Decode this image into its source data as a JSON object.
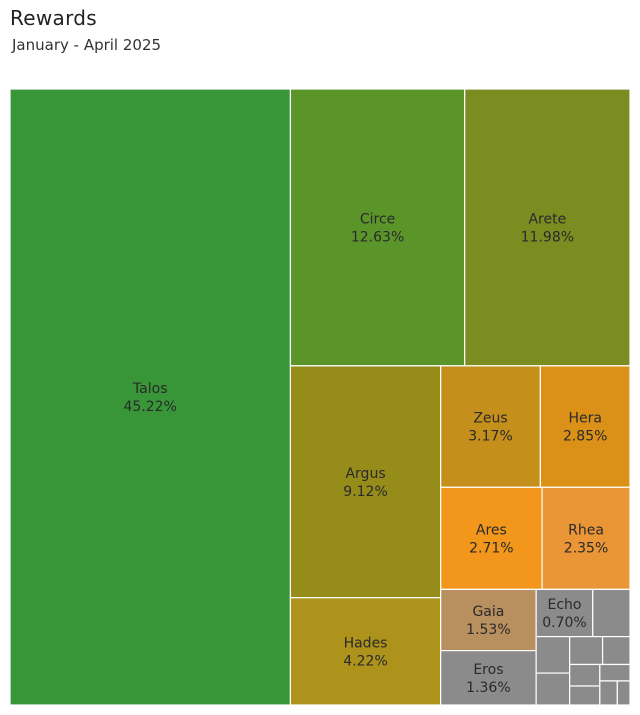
{
  "chart_data": {
    "type": "treemap",
    "title": "Rewards",
    "subtitle": "January - April 2025",
    "items": [
      {
        "name": "Talos",
        "value": 45.22,
        "label": "45.22%",
        "color": "#389638"
      },
      {
        "name": "Circe",
        "value": 12.63,
        "label": "12.63%",
        "color": "#5b952a"
      },
      {
        "name": "Arete",
        "value": 11.98,
        "label": "11.98%",
        "color": "#7b8c20"
      },
      {
        "name": "Argus",
        "value": 9.12,
        "label": "9.12%",
        "color": "#968c1a"
      },
      {
        "name": "Hades",
        "value": 4.22,
        "label": "4.22%",
        "color": "#ad921c"
      },
      {
        "name": "Zeus",
        "value": 3.17,
        "label": "3.17%",
        "color": "#c58f1c"
      },
      {
        "name": "Hera",
        "value": 2.85,
        "label": "2.85%",
        "color": "#db9118"
      },
      {
        "name": "Ares",
        "value": 2.71,
        "label": "2.71%",
        "color": "#f2961c"
      },
      {
        "name": "Rhea",
        "value": 2.35,
        "label": "2.35%",
        "color": "#ea9536"
      },
      {
        "name": "Gaia",
        "value": 1.53,
        "label": "1.53%",
        "color": "#b88f5e"
      },
      {
        "name": "Eros",
        "value": 1.36,
        "label": "1.36%",
        "color": "#8b8b8b"
      },
      {
        "name": "Echo",
        "value": 0.7,
        "label": "0.70%",
        "color": "#8b8b8b"
      },
      {
        "name": "",
        "value": 0.46,
        "label": "",
        "color": "#8b8b8b"
      },
      {
        "name": "",
        "value": 0.32,
        "label": "",
        "color": "#8b8b8b"
      },
      {
        "name": "",
        "value": 0.28,
        "label": "",
        "color": "#8b8b8b"
      },
      {
        "name": "",
        "value": 0.24,
        "label": "",
        "color": "#8b8b8b"
      },
      {
        "name": "",
        "value": 0.2,
        "label": "",
        "color": "#8b8b8b"
      },
      {
        "name": "",
        "value": 0.17,
        "label": "",
        "color": "#8b8b8b"
      },
      {
        "name": "",
        "value": 0.15,
        "label": "",
        "color": "#8b8b8b"
      },
      {
        "name": "",
        "value": 0.13,
        "label": "",
        "color": "#8b8b8b"
      },
      {
        "name": "",
        "value": 0.11,
        "label": "",
        "color": "#8b8b8b"
      },
      {
        "name": "",
        "value": 0.08,
        "label": "",
        "color": "#8b8b8b"
      }
    ]
  }
}
